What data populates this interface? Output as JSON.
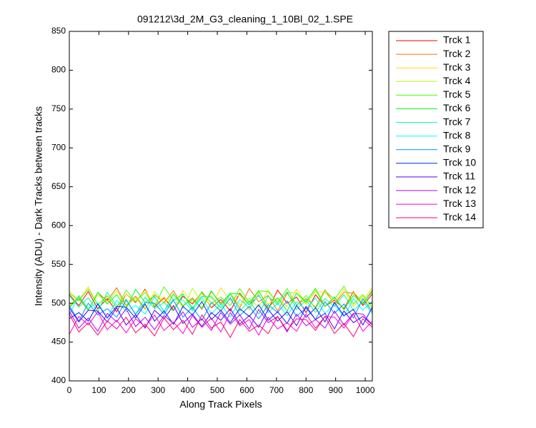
{
  "chart_data": {
    "type": "line",
    "title": "091212\\3d_2M_G3_cleaning_1_10Bl_02_1.SPE",
    "x_label": "Along Track Pixels",
    "y_label": "Intensity (ADU) - Dark Tracks between tracks",
    "xlim": [
      0,
      1024
    ],
    "ylim": [
      400,
      850
    ],
    "xticks": [
      0,
      100,
      200,
      300,
      400,
      500,
      600,
      700,
      800,
      900,
      1000
    ],
    "yticks": [
      400,
      450,
      500,
      550,
      600,
      650,
      700,
      750,
      800,
      850
    ],
    "legend": "outside-right",
    "x": [
      0,
      32,
      64,
      96,
      128,
      160,
      192,
      224,
      256,
      288,
      320,
      352,
      384,
      416,
      448,
      480,
      512,
      544,
      576,
      608,
      640,
      672,
      704,
      736,
      768,
      800,
      832,
      864,
      896,
      928,
      960,
      992,
      1024
    ],
    "series": [
      {
        "name": "Trck 1",
        "color": "#ff0000",
        "values": [
          511,
          497,
          515,
          493,
          506,
          489,
          512,
          501,
          518,
          495,
          507,
          491,
          509,
          499,
          514,
          494,
          505,
          490,
          513,
          498,
          510,
          492,
          517,
          500,
          508,
          488,
          511,
          496,
          504,
          493,
          515,
          497,
          512
        ]
      },
      {
        "name": "Trck 2",
        "color": "#ff6d00",
        "values": [
          495,
          508,
          491,
          514,
          503,
          520,
          497,
          509,
          493,
          511,
          501,
          516,
          496,
          507,
          492,
          515,
          500,
          512,
          494,
          519,
          502,
          510,
          490,
          513,
          498,
          506,
          495,
          517,
          499,
          514,
          513,
          499,
          517
        ]
      },
      {
        "name": "Trck 3",
        "color": "#ffdb00",
        "values": [
          515,
          504,
          521,
          498,
          510,
          494,
          512,
          502,
          517,
          497,
          508,
          493,
          516,
          501,
          513,
          495,
          520,
          503,
          511,
          491,
          514,
          499,
          507,
          496,
          518,
          500,
          515,
          514,
          500,
          518,
          496,
          509,
          492
        ]
      },
      {
        "name": "Trck 4",
        "color": "#b6ff00",
        "values": [
          497,
          509,
          493,
          511,
          501,
          516,
          496,
          507,
          492,
          515,
          500,
          512,
          494,
          519,
          502,
          510,
          490,
          513,
          498,
          506,
          495,
          517,
          499,
          514,
          513,
          499,
          517,
          495,
          508,
          491,
          514,
          503,
          520
        ]
      },
      {
        "name": "Trck 5",
        "color": "#49ff00",
        "values": [
          513,
          503,
          518,
          498,
          509,
          494,
          517,
          502,
          514,
          496,
          521,
          504,
          512,
          492,
          515,
          500,
          508,
          497,
          519,
          501,
          516,
          515,
          501,
          519,
          497,
          510,
          493,
          516,
          505,
          522,
          499,
          511,
          495
        ]
      },
      {
        "name": "Trck 6",
        "color": "#00ff24",
        "values": [
          495,
          506,
          491,
          514,
          499,
          511,
          493,
          518,
          501,
          509,
          489,
          512,
          497,
          505,
          494,
          516,
          498,
          513,
          512,
          498,
          516,
          494,
          507,
          490,
          513,
          502,
          519,
          496,
          508,
          492,
          510,
          500,
          515
        ]
      },
      {
        "name": "Trck 7",
        "color": "#00ff92",
        "values": [
          510,
          495,
          507,
          489,
          514,
          497,
          505,
          485,
          508,
          493,
          501,
          490,
          512,
          494,
          509,
          508,
          494,
          512,
          490,
          503,
          486,
          509,
          498,
          515,
          492,
          504,
          488,
          506,
          496,
          511,
          491,
          502,
          487
        ]
      },
      {
        "name": "Trck 8",
        "color": "#00ffff",
        "values": [
          485,
          510,
          493,
          501,
          481,
          504,
          489,
          497,
          486,
          508,
          490,
          505,
          504,
          490,
          508,
          486,
          499,
          482,
          505,
          494,
          511,
          488,
          500,
          484,
          502,
          492,
          507,
          487,
          498,
          483,
          506,
          491,
          503
        ]
      },
      {
        "name": "Trck 9",
        "color": "#0092ff",
        "values": [
          497,
          477,
          500,
          485,
          493,
          482,
          504,
          486,
          501,
          500,
          486,
          504,
          482,
          495,
          478,
          501,
          490,
          507,
          484,
          496,
          480,
          498,
          488,
          503,
          483,
          494,
          479,
          502,
          487,
          499,
          481,
          506,
          489
        ]
      },
      {
        "name": "Trck 10",
        "color": "#0024ff",
        "values": [
          480,
          488,
          477,
          499,
          481,
          496,
          495,
          481,
          499,
          477,
          490,
          473,
          496,
          485,
          502,
          479,
          491,
          475,
          493,
          483,
          498,
          478,
          489,
          474,
          497,
          482,
          494,
          476,
          501,
          484,
          492,
          472,
          495
        ]
      },
      {
        "name": "Trck 11",
        "color": "#4900ff",
        "values": [
          494,
          476,
          491,
          490,
          476,
          494,
          472,
          485,
          468,
          491,
          480,
          497,
          474,
          486,
          470,
          488,
          478,
          493,
          473,
          484,
          469,
          492,
          477,
          489,
          471,
          496,
          479,
          487,
          467,
          490,
          475,
          483,
          472
        ]
      },
      {
        "name": "Trck 12",
        "color": "#b600ff",
        "values": [
          490,
          468,
          481,
          464,
          487,
          476,
          493,
          470,
          482,
          466,
          484,
          474,
          489,
          469,
          480,
          465,
          488,
          473,
          485,
          467,
          492,
          475,
          483,
          463,
          486,
          471,
          479,
          468,
          490,
          472,
          487,
          486,
          472
        ]
      },
      {
        "name": "Trck 13",
        "color": "#ff00db",
        "values": [
          460,
          483,
          472,
          489,
          466,
          478,
          462,
          480,
          470,
          485,
          465,
          476,
          461,
          484,
          469,
          481,
          463,
          488,
          471,
          479,
          459,
          482,
          467,
          475,
          464,
          486,
          468,
          483,
          482,
          468,
          486,
          464,
          477
        ]
      },
      {
        "name": "Trck 14",
        "color": "#ff006d",
        "values": [
          486,
          463,
          475,
          459,
          477,
          467,
          482,
          462,
          473,
          458,
          481,
          466,
          478,
          460,
          485,
          468,
          476,
          456,
          479,
          464,
          472,
          461,
          483,
          465,
          480,
          479,
          465,
          483,
          461,
          474,
          457,
          480,
          469
        ]
      }
    ]
  }
}
